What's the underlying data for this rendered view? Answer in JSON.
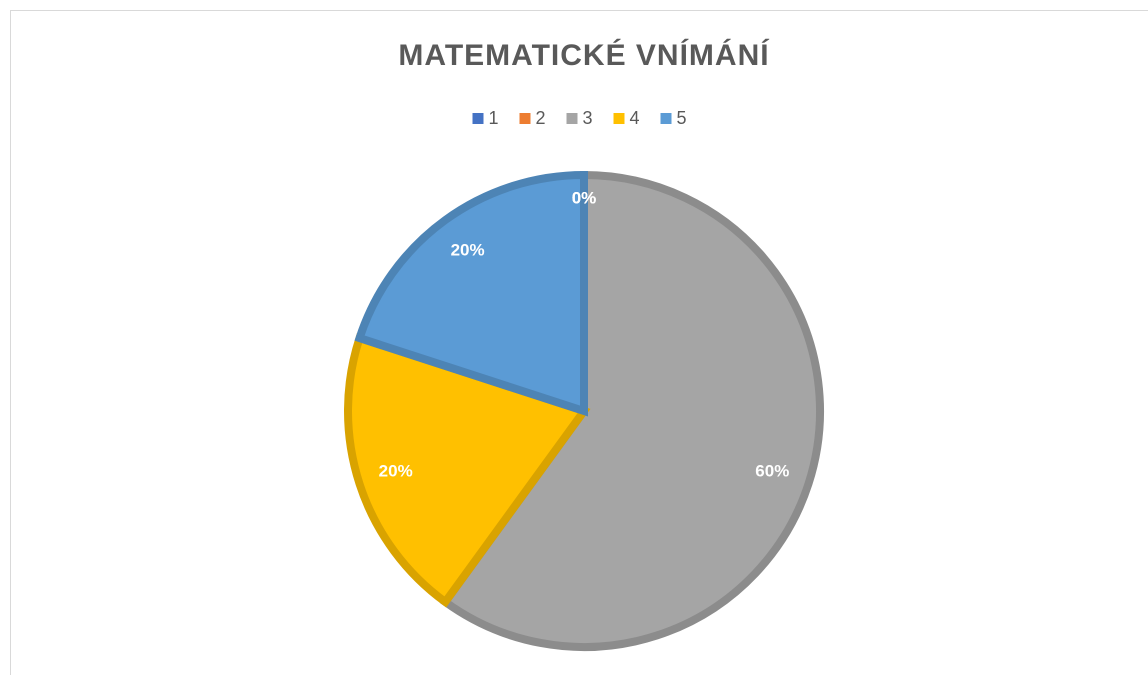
{
  "chart_data": {
    "type": "pie",
    "title": "MATEMATICKÉ VNÍMÁNÍ",
    "categories": [
      "1",
      "2",
      "3",
      "4",
      "5"
    ],
    "values": [
      0,
      0,
      60,
      20,
      20
    ],
    "value_labels": [
      "0%",
      "0%",
      "60%",
      "20%",
      "20%"
    ],
    "colors": [
      "#4472c4",
      "#ed7d31",
      "#a5a5a5",
      "#ffc000",
      "#5b9bd5"
    ],
    "legend": "top"
  }
}
